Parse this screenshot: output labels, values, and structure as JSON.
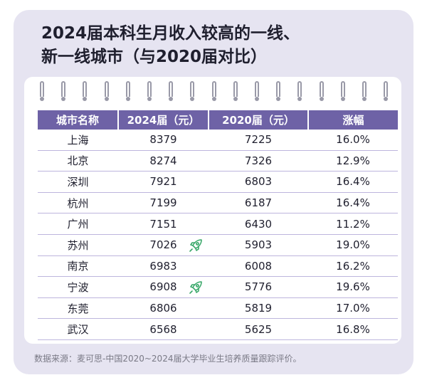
{
  "title": {
    "line1": "2024届本科生月收入较高的一线、",
    "line2": "新一线城市（与2020届对比）"
  },
  "table": {
    "headers": [
      "城市名称",
      "2024届（元）",
      "2020届（元）",
      "涨幅"
    ],
    "rows": [
      {
        "city": "上海",
        "y2024": "8379",
        "y2020": "7225",
        "growth": "16.0%",
        "rocket": false
      },
      {
        "city": "北京",
        "y2024": "8274",
        "y2020": "7326",
        "growth": "12.9%",
        "rocket": false
      },
      {
        "city": "深圳",
        "y2024": "7921",
        "y2020": "6803",
        "growth": "16.4%",
        "rocket": false
      },
      {
        "city": "杭州",
        "y2024": "7199",
        "y2020": "6187",
        "growth": "16.4%",
        "rocket": false
      },
      {
        "city": "广州",
        "y2024": "7151",
        "y2020": "6430",
        "growth": "11.2%",
        "rocket": false
      },
      {
        "city": "苏州",
        "y2024": "7026",
        "y2020": "5903",
        "growth": "19.0%",
        "rocket": true
      },
      {
        "city": "南京",
        "y2024": "6983",
        "y2020": "6008",
        "growth": "16.2%",
        "rocket": false
      },
      {
        "city": "宁波",
        "y2024": "6908",
        "y2020": "5776",
        "growth": "19.6%",
        "rocket": true
      },
      {
        "city": "东莞",
        "y2024": "6806",
        "y2020": "5819",
        "growth": "17.0%",
        "rocket": false
      },
      {
        "city": "武汉",
        "y2024": "6568",
        "y2020": "5625",
        "growth": "16.8%",
        "rocket": false
      }
    ]
  },
  "footnote": "数据来源：麦可思-中国2020~2024届大学毕业生培养质量跟踪评价。",
  "colors": {
    "header_bg": "#6e62a6",
    "card_bg": "#e6e4f1",
    "rocket": "#3aa86a"
  },
  "icons": {
    "rocket": "rocket-icon",
    "ring": "binder-ring-icon"
  }
}
